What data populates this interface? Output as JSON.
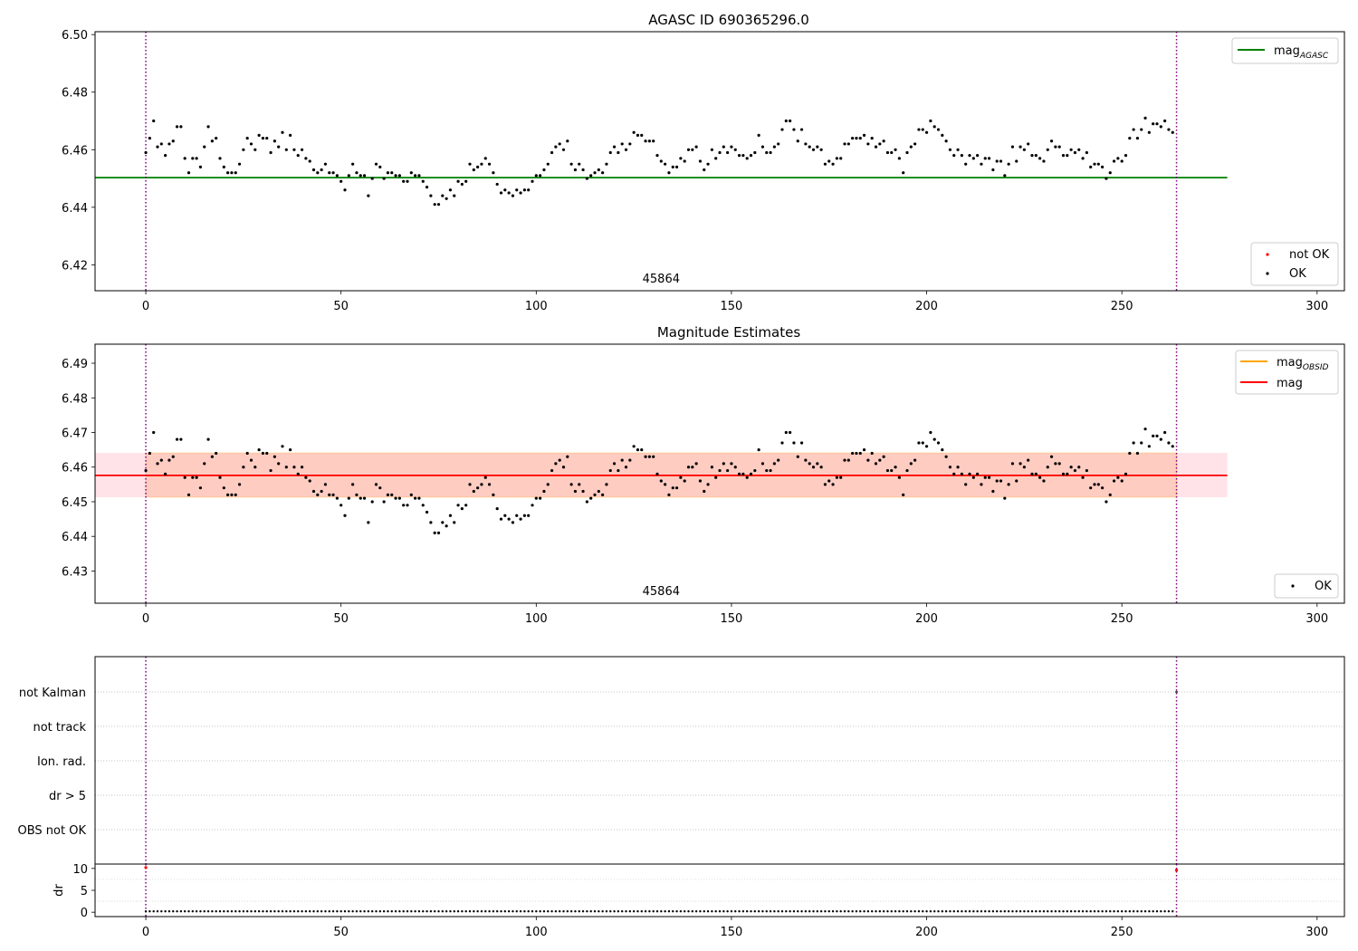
{
  "colors": {
    "ok": "#000000",
    "not_ok": "#ff0000",
    "mag_agasc": "#008000",
    "mag_obsid": "#ffa500",
    "mag": "#ff0000",
    "obs_boundary": "#800080",
    "band_outer": "#ffc0cb",
    "band_inner": "#ffa07a"
  },
  "chart_data": [
    {
      "type": "scatter",
      "title": "AGASC ID 690365296.0",
      "xlim": [
        -13,
        307
      ],
      "ylim": [
        6.411,
        6.501
      ],
      "xticks": [
        0,
        50,
        100,
        150,
        200,
        250,
        300
      ],
      "yticks": [
        6.42,
        6.44,
        6.46,
        6.48,
        6.5
      ],
      "ytick_labels": [
        "6.42",
        "6.44",
        "6.46",
        "6.48",
        "6.50"
      ],
      "obsid_label": "45864",
      "obsid_label_x": 132,
      "vlines": [
        0,
        264
      ],
      "hline": {
        "y": 6.4503,
        "x0": -13,
        "x1": 277
      },
      "legend_upper": [
        {
          "label": "mag",
          "sub": "AGASC"
        }
      ],
      "legend_lower": [
        {
          "label": "not OK"
        },
        {
          "label": "OK"
        }
      ],
      "series": [
        {
          "name": "OK",
          "values": [
            6.459,
            6.464,
            6.47,
            6.461,
            6.462,
            6.458,
            6.462,
            6.463,
            6.468,
            6.468,
            6.457,
            6.452,
            6.457,
            6.457,
            6.454,
            6.461,
            6.468,
            6.463,
            6.464,
            6.457,
            6.454,
            6.452,
            6.452,
            6.452,
            6.455,
            6.46,
            6.464,
            6.462,
            6.46,
            6.465,
            6.464,
            6.464,
            6.459,
            6.463,
            6.461,
            6.466,
            6.46,
            6.465,
            6.46,
            6.458,
            6.46,
            6.457,
            6.456,
            6.453,
            6.452,
            6.453,
            6.455,
            6.452,
            6.452,
            6.451,
            6.449,
            6.446,
            6.451,
            6.455,
            6.452,
            6.451,
            6.451,
            6.444,
            6.45,
            6.455,
            6.454,
            6.45,
            6.452,
            6.452,
            6.451,
            6.451,
            6.449,
            6.449,
            6.452,
            6.451,
            6.451,
            6.449,
            6.447,
            6.444,
            6.441,
            6.441,
            6.444,
            6.443,
            6.446,
            6.444,
            6.449,
            6.448,
            6.449,
            6.455,
            6.453,
            6.454,
            6.455,
            6.457,
            6.455,
            6.452,
            6.448,
            6.445,
            6.446,
            6.445,
            6.444,
            6.446,
            6.445,
            6.446,
            6.446,
            6.449,
            6.451,
            6.451,
            6.453,
            6.455,
            6.459,
            6.461,
            6.462,
            6.46,
            6.463,
            6.455,
            6.453,
            6.455,
            6.453,
            6.45,
            6.451,
            6.452,
            6.453,
            6.452,
            6.455,
            6.459,
            6.461,
            6.459,
            6.462,
            6.46,
            6.462,
            6.466,
            6.465,
            6.465,
            6.463,
            6.463,
            6.463,
            6.458,
            6.456,
            6.455,
            6.452,
            6.454,
            6.454,
            6.457,
            6.456,
            6.46,
            6.46,
            6.461,
            6.456,
            6.453,
            6.455,
            6.46,
            6.457,
            6.459,
            6.461,
            6.459,
            6.461,
            6.46,
            6.458,
            6.458,
            6.457,
            6.458,
            6.459,
            6.465,
            6.461,
            6.459,
            6.459,
            6.461,
            6.462,
            6.467,
            6.47,
            6.47,
            6.467,
            6.463,
            6.467,
            6.462,
            6.461,
            6.46,
            6.461,
            6.46,
            6.455,
            6.456,
            6.455,
            6.457,
            6.457,
            6.462,
            6.462,
            6.464,
            6.464,
            6.464,
            6.465,
            6.462,
            6.464,
            6.461,
            6.462,
            6.463,
            6.459,
            6.459,
            6.46,
            6.457,
            6.452,
            6.459,
            6.461,
            6.462,
            6.467,
            6.467,
            6.466,
            6.47,
            6.468,
            6.467,
            6.465,
            6.463,
            6.46,
            6.458,
            6.46,
            6.458,
            6.455,
            6.458,
            6.457,
            6.458,
            6.455,
            6.457,
            6.457,
            6.453,
            6.456,
            6.456,
            6.451,
            6.455,
            6.461,
            6.456,
            6.461,
            6.46,
            6.462,
            6.458,
            6.458,
            6.457,
            6.456,
            6.46,
            6.463,
            6.461,
            6.461,
            6.458,
            6.458,
            6.46,
            6.459,
            6.46,
            6.457,
            6.459,
            6.454,
            6.455,
            6.455,
            6.454,
            6.45,
            6.452,
            6.456,
            6.457,
            6.456,
            6.458,
            6.464,
            6.467,
            6.464,
            6.467,
            6.471,
            6.466,
            6.469,
            6.469,
            6.468,
            6.47,
            6.467,
            6.466
          ]
        }
      ]
    },
    {
      "type": "scatter",
      "title": "Magnitude Estimates",
      "xlim": [
        -13,
        307
      ],
      "ylim": [
        6.4207,
        6.4955
      ],
      "xticks": [
        0,
        50,
        100,
        150,
        200,
        250,
        300
      ],
      "yticks": [
        6.43,
        6.44,
        6.45,
        6.46,
        6.47,
        6.48,
        6.49
      ],
      "ytick_labels": [
        "6.43",
        "6.44",
        "6.45",
        "6.46",
        "6.47",
        "6.48",
        "6.49"
      ],
      "obsid_label": "45864",
      "obsid_label_x": 132,
      "vlines": [
        0,
        264
      ],
      "band_outer": {
        "y0": 6.4513,
        "y1": 6.4641,
        "x0": -13,
        "x1": 277
      },
      "band_inner": {
        "y0": 6.4513,
        "y1": 6.4641,
        "x0": 0,
        "x1": 264
      },
      "mag_line": {
        "y": 6.4576,
        "x0": -13,
        "x1": 277
      },
      "mag_obsid_line": {
        "y": 6.4576,
        "x0": 0,
        "x1": 264
      },
      "legend_upper": [
        {
          "label": "mag",
          "sub": "OBSID"
        },
        {
          "label": "mag",
          "sub": ""
        }
      ],
      "legend_lower": [
        {
          "label": "OK"
        }
      ],
      "series": [
        {
          "name": "OK",
          "values": [
            6.459,
            6.464,
            6.47,
            6.461,
            6.462,
            6.458,
            6.462,
            6.463,
            6.468,
            6.468,
            6.457,
            6.452,
            6.457,
            6.457,
            6.454,
            6.461,
            6.468,
            6.463,
            6.464,
            6.457,
            6.454,
            6.452,
            6.452,
            6.452,
            6.455,
            6.46,
            6.464,
            6.462,
            6.46,
            6.465,
            6.464,
            6.464,
            6.459,
            6.463,
            6.461,
            6.466,
            6.46,
            6.465,
            6.46,
            6.458,
            6.46,
            6.457,
            6.456,
            6.453,
            6.452,
            6.453,
            6.455,
            6.452,
            6.452,
            6.451,
            6.449,
            6.446,
            6.451,
            6.455,
            6.452,
            6.451,
            6.451,
            6.444,
            6.45,
            6.455,
            6.454,
            6.45,
            6.452,
            6.452,
            6.451,
            6.451,
            6.449,
            6.449,
            6.452,
            6.451,
            6.451,
            6.449,
            6.447,
            6.444,
            6.441,
            6.441,
            6.444,
            6.443,
            6.446,
            6.444,
            6.449,
            6.448,
            6.449,
            6.455,
            6.453,
            6.454,
            6.455,
            6.457,
            6.455,
            6.452,
            6.448,
            6.445,
            6.446,
            6.445,
            6.444,
            6.446,
            6.445,
            6.446,
            6.446,
            6.449,
            6.451,
            6.451,
            6.453,
            6.455,
            6.459,
            6.461,
            6.462,
            6.46,
            6.463,
            6.455,
            6.453,
            6.455,
            6.453,
            6.45,
            6.451,
            6.452,
            6.453,
            6.452,
            6.455,
            6.459,
            6.461,
            6.459,
            6.462,
            6.46,
            6.462,
            6.466,
            6.465,
            6.465,
            6.463,
            6.463,
            6.463,
            6.458,
            6.456,
            6.455,
            6.452,
            6.454,
            6.454,
            6.457,
            6.456,
            6.46,
            6.46,
            6.461,
            6.456,
            6.453,
            6.455,
            6.46,
            6.457,
            6.459,
            6.461,
            6.459,
            6.461,
            6.46,
            6.458,
            6.458,
            6.457,
            6.458,
            6.459,
            6.465,
            6.461,
            6.459,
            6.459,
            6.461,
            6.462,
            6.467,
            6.47,
            6.47,
            6.467,
            6.463,
            6.467,
            6.462,
            6.461,
            6.46,
            6.461,
            6.46,
            6.455,
            6.456,
            6.455,
            6.457,
            6.457,
            6.462,
            6.462,
            6.464,
            6.464,
            6.464,
            6.465,
            6.462,
            6.464,
            6.461,
            6.462,
            6.463,
            6.459,
            6.459,
            6.46,
            6.457,
            6.452,
            6.459,
            6.461,
            6.462,
            6.467,
            6.467,
            6.466,
            6.47,
            6.468,
            6.467,
            6.465,
            6.463,
            6.46,
            6.458,
            6.46,
            6.458,
            6.455,
            6.458,
            6.457,
            6.458,
            6.455,
            6.457,
            6.457,
            6.453,
            6.456,
            6.456,
            6.451,
            6.455,
            6.461,
            6.456,
            6.461,
            6.46,
            6.462,
            6.458,
            6.458,
            6.457,
            6.456,
            6.46,
            6.463,
            6.461,
            6.461,
            6.458,
            6.458,
            6.46,
            6.459,
            6.46,
            6.457,
            6.459,
            6.454,
            6.455,
            6.455,
            6.454,
            6.45,
            6.452,
            6.456,
            6.457,
            6.456,
            6.458,
            6.464,
            6.467,
            6.464,
            6.467,
            6.471,
            6.466,
            6.469,
            6.469,
            6.468,
            6.47,
            6.467,
            6.466
          ]
        }
      ]
    },
    {
      "type": "scatter",
      "title": "",
      "xlim": [
        -13,
        307
      ],
      "categories": [
        "not Kalman",
        "not track",
        "Ion. rad.",
        "dr > 5",
        "OBS not OK"
      ],
      "vlines": [
        0,
        264
      ],
      "flag_points": [
        {
          "x": 264,
          "category": "not Kalman"
        }
      ]
    },
    {
      "type": "scatter",
      "title": "",
      "xlim": [
        -13,
        307
      ],
      "ylim": [
        -1,
        11
      ],
      "xticks": [
        0,
        50,
        100,
        150,
        200,
        250,
        300
      ],
      "yticks": [
        0,
        5,
        10
      ],
      "ytick_labels": [
        "0",
        "5",
        "10"
      ],
      "ylabel": "dr",
      "vlines": [
        0,
        264
      ],
      "dr_level": 0.2,
      "not_ok_points": [
        {
          "x": 0,
          "y": 10.2
        },
        {
          "x": 264,
          "y": 9.6
        }
      ]
    }
  ]
}
